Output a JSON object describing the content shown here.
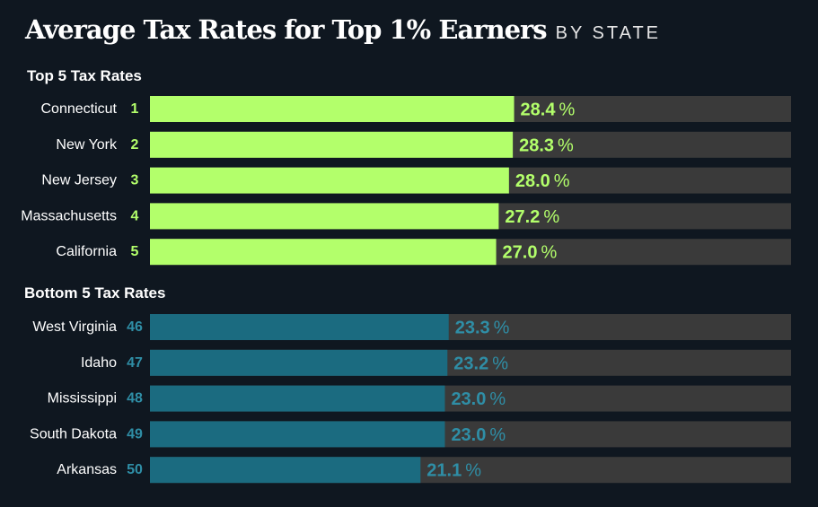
{
  "header": {
    "title": "Average Tax Rates for Top 1% Earners",
    "subtitle": "BY STATE"
  },
  "colors": {
    "background": "#0f1720",
    "track": "#3a3a3a",
    "top_bar": "#b3ff6b",
    "bottom_bar": "#1b6b80",
    "bottom_text": "#2f8ea6"
  },
  "chart_data": {
    "type": "bar",
    "title": "Average Tax Rates for Top 1% Earners BY STATE",
    "unit": "%",
    "xlim": [
      0,
      50
    ],
    "groups": [
      {
        "name": "Top 5 Tax Rates",
        "color": "#b3ff6b",
        "label_color": "#b3ff6b",
        "rows": [
          {
            "state": "Connecticut",
            "rank": "1",
            "value": 28.4,
            "label": "28.4"
          },
          {
            "state": "New York",
            "rank": "2",
            "value": 28.3,
            "label": "28.3"
          },
          {
            "state": "New Jersey",
            "rank": "3",
            "value": 28.0,
            "label": "28.0"
          },
          {
            "state": "Massachusetts",
            "rank": "4",
            "value": 27.2,
            "label": "27.2"
          },
          {
            "state": "California",
            "rank": "5",
            "value": 27.0,
            "label": "27.0"
          }
        ]
      },
      {
        "name": "Bottom 5 Tax Rates",
        "color": "#1b6b80",
        "label_color": "#2f8ea6",
        "rows": [
          {
            "state": "West Virginia",
            "rank": "46",
            "value": 23.3,
            "label": "23.3"
          },
          {
            "state": "Idaho",
            "rank": "47",
            "value": 23.2,
            "label": "23.2"
          },
          {
            "state": "Mississippi",
            "rank": "48",
            "value": 23.0,
            "label": "23.0"
          },
          {
            "state": "South Dakota",
            "rank": "49",
            "value": 23.0,
            "label": "23.0"
          },
          {
            "state": "Arkansas",
            "rank": "50",
            "value": 21.1,
            "label": "21.1"
          }
        ]
      }
    ]
  }
}
